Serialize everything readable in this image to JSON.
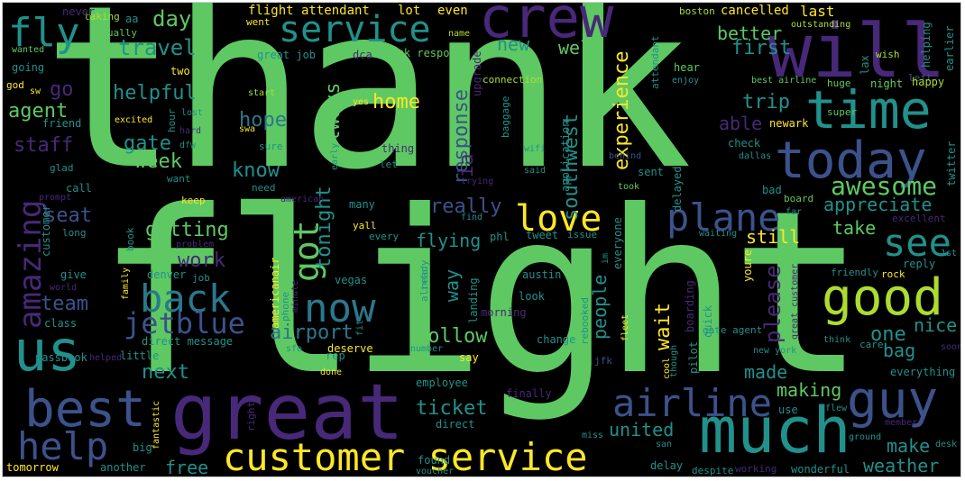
{
  "wordcloud": {
    "palette": {
      "green": "#5ec962",
      "teal": "#21918c",
      "blue": "#3b528b",
      "purple": "#440154",
      "violet": "#482878",
      "lime": "#addc30",
      "yellow": "#fde725",
      "cyan": "#2a788e"
    },
    "words": {
      "thank": "thank",
      "flight": "flight",
      "great": "great",
      "crew": "crew",
      "will": "will",
      "service": "service",
      "fly": "fly",
      "time": "time",
      "today": "today",
      "best": "best",
      "us": "us",
      "help": "help",
      "much": "much",
      "guy": "guy",
      "good": "good",
      "customer_service": "customer service",
      "airline": "airline",
      "now": "now",
      "back": "back",
      "plane": "plane",
      "love": "love",
      "see": "see",
      "amazing": "amazing",
      "jetblue": "jetblue",
      "got": "got",
      "awesome": "awesome",
      "travel": "travel",
      "day": "day",
      "flight_attendant": "flight attendant",
      "lot": "lot",
      "even": "even",
      "boston": "boston",
      "cancelled": "cancelled",
      "last": "last",
      "taking": "taking",
      "aa": "aa",
      "went": "went",
      "actually": "actually",
      "name": "name",
      "outstanding": "outstanding",
      "wanted": "wanted",
      "great_job": "great job",
      "quick_response": "quick response",
      "dca": "dca",
      "connection": "connection",
      "better": "better",
      "first": "first",
      "never": "never",
      "going": "going",
      "two": "two",
      "god": "god",
      "sw": "sw",
      "new": "new",
      "well": "well",
      "experience": "experience",
      "upgrade": "upgrade",
      "attendant": "attendant",
      "hear": "hear",
      "enjoy": "enjoy",
      "best_airline": "best airline",
      "huge": "huge",
      "night": "night",
      "wish": "wish",
      "left": "left",
      "helping": "helping",
      "earlier": "earlier",
      "happy": "happy",
      "lax": "lax",
      "go": "go",
      "helpful": "helpful",
      "agent": "agent",
      "friend": "friend",
      "home": "home",
      "hope": "hope",
      "start": "start",
      "yes": "yes",
      "trip": "trip",
      "super": "super",
      "excited": "excited",
      "hour": "hour",
      "lost": "lost",
      "always": "always",
      "response": "response",
      "able": "able",
      "newark": "newark",
      "staff": "staff",
      "gate": "gate",
      "hard": "hard",
      "swa": "swa",
      "dfw": "dfw",
      "sure": "sure",
      "thing": "thing",
      "baggage": "baggage",
      "wifi": "wifi",
      "check": "check",
      "dallas": "dallas",
      "behind": "behind",
      "twitter": "twitter",
      "glad": "glad",
      "week": "week",
      "want": "want",
      "know": "know",
      "early": "early",
      "let": "let",
      "ia": "ia",
      "said": "said",
      "application": "application",
      "sent": "sent",
      "southwest": "southwest",
      "call": "call",
      "prompt": "prompt",
      "need": "need",
      "took": "took",
      "trying": "trying",
      "seat": "seat",
      "keep": "keep",
      "american": "american",
      "many": "many",
      "really": "really",
      "bad": "bad",
      "board": "board",
      "far": "far",
      "appreciate": "appreciate",
      "excellent": "excellent",
      "customer": "customer",
      "getting": "getting",
      "long": "long",
      "book": "book",
      "yall": "yall",
      "every": "every",
      "flying": "flying",
      "phl": "phl",
      "tweet": "tweet",
      "issue": "issue",
      "waiting": "waiting",
      "take": "take",
      "still": "still",
      "problem": "problem",
      "tonight": "tonight",
      "everyone": "everyone",
      "delayed": "delayed",
      "find": "find",
      "work": "work",
      "americanair": "americanair",
      "im": "im",
      "reply": "reply",
      "1st": "1st",
      "give": "give",
      "denver": "denver",
      "family": "family",
      "job": "job",
      "vegas": "vegas",
      "minute": "minute",
      "austin": "austin",
      "friendly": "friendly",
      "rock": "rock",
      "please": "please",
      "world": "world",
      "team": "team",
      "phone": "phone",
      "info": "info",
      "already": "already",
      "way": "way",
      "look": "look",
      "youre": "youre",
      "great_customer": "great customer",
      "class": "class",
      "landing": "landing",
      "people": "people",
      "boarding": "boarding",
      "fleet": "fleet",
      "nice": "nice",
      "one": "one",
      "direct_message": "direct message",
      "follow": "follow",
      "morning": "morning",
      "wait": "wait",
      "gate_agent": "gate agent",
      "airport": "airport",
      "fit": "fit",
      "rebooked": "rebooked",
      "bag": "bag",
      "pilot": "pilot",
      "quick": "quick",
      "think": "think",
      "little": "little",
      "sfo": "sfo",
      "deserve": "deserve",
      "number": "number",
      "change": "change",
      "care": "care",
      "soon": "soon",
      "new_york": "new york",
      "next": "next",
      "helped": "helped",
      "rep": "rep",
      "say": "say",
      "made": "made",
      "passbook": "passbook",
      "done": "done",
      "jfk": "jfk",
      "cool": "cool",
      "though": "though",
      "everything": "everything",
      "making": "making",
      "employee": "employee",
      "finally": "finally",
      "right": "right",
      "ticket": "ticket",
      "use": "use",
      "flew": "flew",
      "member": "member",
      "fantastic": "fantastic",
      "big": "big",
      "direct": "direct",
      "united": "united",
      "miss": "miss",
      "ground": "ground",
      "make": "make",
      "desk": "desk",
      "free": "free",
      "san": "san",
      "found": "found",
      "delay": "delay",
      "despite": "despite",
      "working": "working",
      "wonderful": "wonderful",
      "weather": "weather",
      "tomorrow": "tomorrow",
      "another": "another",
      "voucher": "voucher"
    }
  }
}
